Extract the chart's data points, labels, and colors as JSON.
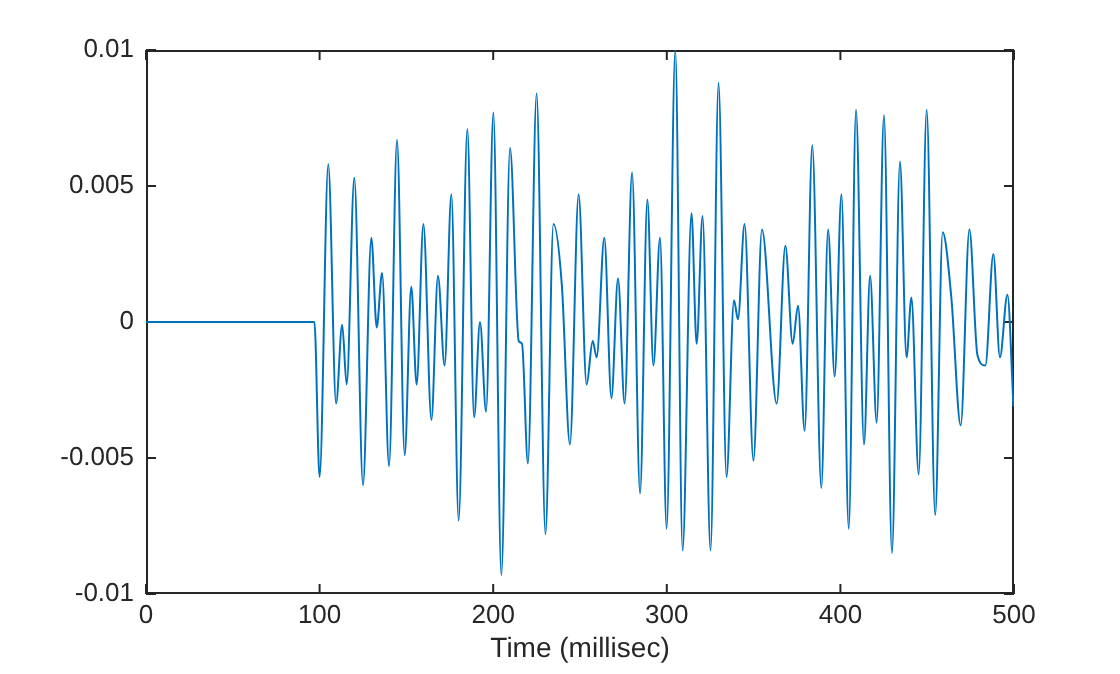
{
  "chart_data": {
    "type": "line",
    "xlabel": "Time (millisec)",
    "color": "#0072bd",
    "x": [
      0,
      97,
      100,
      105,
      109.5,
      113,
      115.6,
      120,
      125,
      129.8,
      132.9,
      136,
      140,
      144.6,
      149,
      152.8,
      155.9,
      159.8,
      164.4,
      168.2,
      172,
      175.9,
      180.1,
      185.1,
      189,
      192.4,
      195.9,
      200.1,
      204.7,
      209.7,
      214.7,
      216.6,
      220,
      225,
      230.1,
      234.7,
      239.6,
      244.2,
      249.2,
      253.8,
      257.3,
      259.6,
      264,
      268.1,
      271.9,
      275.7,
      280,
      284.6,
      288.8,
      292.3,
      296.1,
      299.9,
      304.9,
      309.1,
      314.2,
      317.2,
      320.6,
      325.2,
      329.8,
      334.4,
      338.7,
      341,
      344.8,
      349.9,
      354.8,
      363.3,
      368.3,
      372.5,
      375.6,
      379.4,
      383.8,
      389,
      392.9,
      396.7,
      400.6,
      404.8,
      409,
      413.6,
      417.1,
      420.9,
      425.1,
      429.7,
      434.3,
      438.1,
      440.9,
      445.1,
      449.7,
      454.6,
      458.9,
      463.9,
      469.3,
      474.3,
      478.9,
      483.5,
      488.1,
      491.9,
      496.2,
      499.7
    ],
    "values": [
      0,
      0,
      -0.0057,
      0.0058,
      -0.003,
      -0.0001,
      -0.0023,
      0.0053,
      -0.006,
      0.0031,
      -0.0002,
      0.0018,
      -0.0053,
      0.0067,
      -0.0049,
      0.0013,
      -0.0023,
      0.0036,
      -0.0036,
      0.0017,
      -0.0016,
      0.0047,
      -0.0073,
      0.0071,
      -0.0035,
      0,
      -0.0033,
      0.0077,
      -0.0093,
      0.0064,
      -0.0007,
      -0.0008,
      -0.0052,
      0.0084,
      -0.0078,
      0.0036,
      0.0013,
      -0.0045,
      0.0047,
      -0.0023,
      -0.0007,
      -0.0013,
      0.0031,
      -0.0028,
      0.0016,
      -0.003,
      0.0055,
      -0.0063,
      0.0045,
      -0.0016,
      0.0031,
      -0.0076,
      0.01,
      -0.0084,
      0.004,
      -0.0008,
      0.0039,
      -0.0084,
      0.0088,
      -0.0057,
      0.0008,
      0.0001,
      0.0036,
      -0.0051,
      0.0034,
      -0.003,
      0.0028,
      -0.0008,
      0.0006,
      -0.004,
      0.0065,
      -0.0061,
      0.0034,
      -0.002,
      0.0047,
      -0.0076,
      0.0078,
      -0.0045,
      0.0017,
      -0.0037,
      0.0076,
      -0.0085,
      0.0059,
      -0.0013,
      0.0009,
      -0.0056,
      0.0078,
      -0.0071,
      0.0033,
      0.0009,
      -0.0038,
      0.0034,
      -0.0012,
      -0.0016,
      0.0025,
      -0.0013,
      0.001,
      -0.0031
    ],
    "xlim": [
      0,
      500
    ],
    "xticks": [
      0,
      100,
      200,
      300,
      400,
      500
    ],
    "ylim": [
      -0.01,
      0.01
    ],
    "yticks": [
      -0.01,
      -0.005,
      0,
      0.005,
      0.01
    ],
    "grid": false,
    "legend": false,
    "marker": "none",
    "line_style": "solid"
  }
}
